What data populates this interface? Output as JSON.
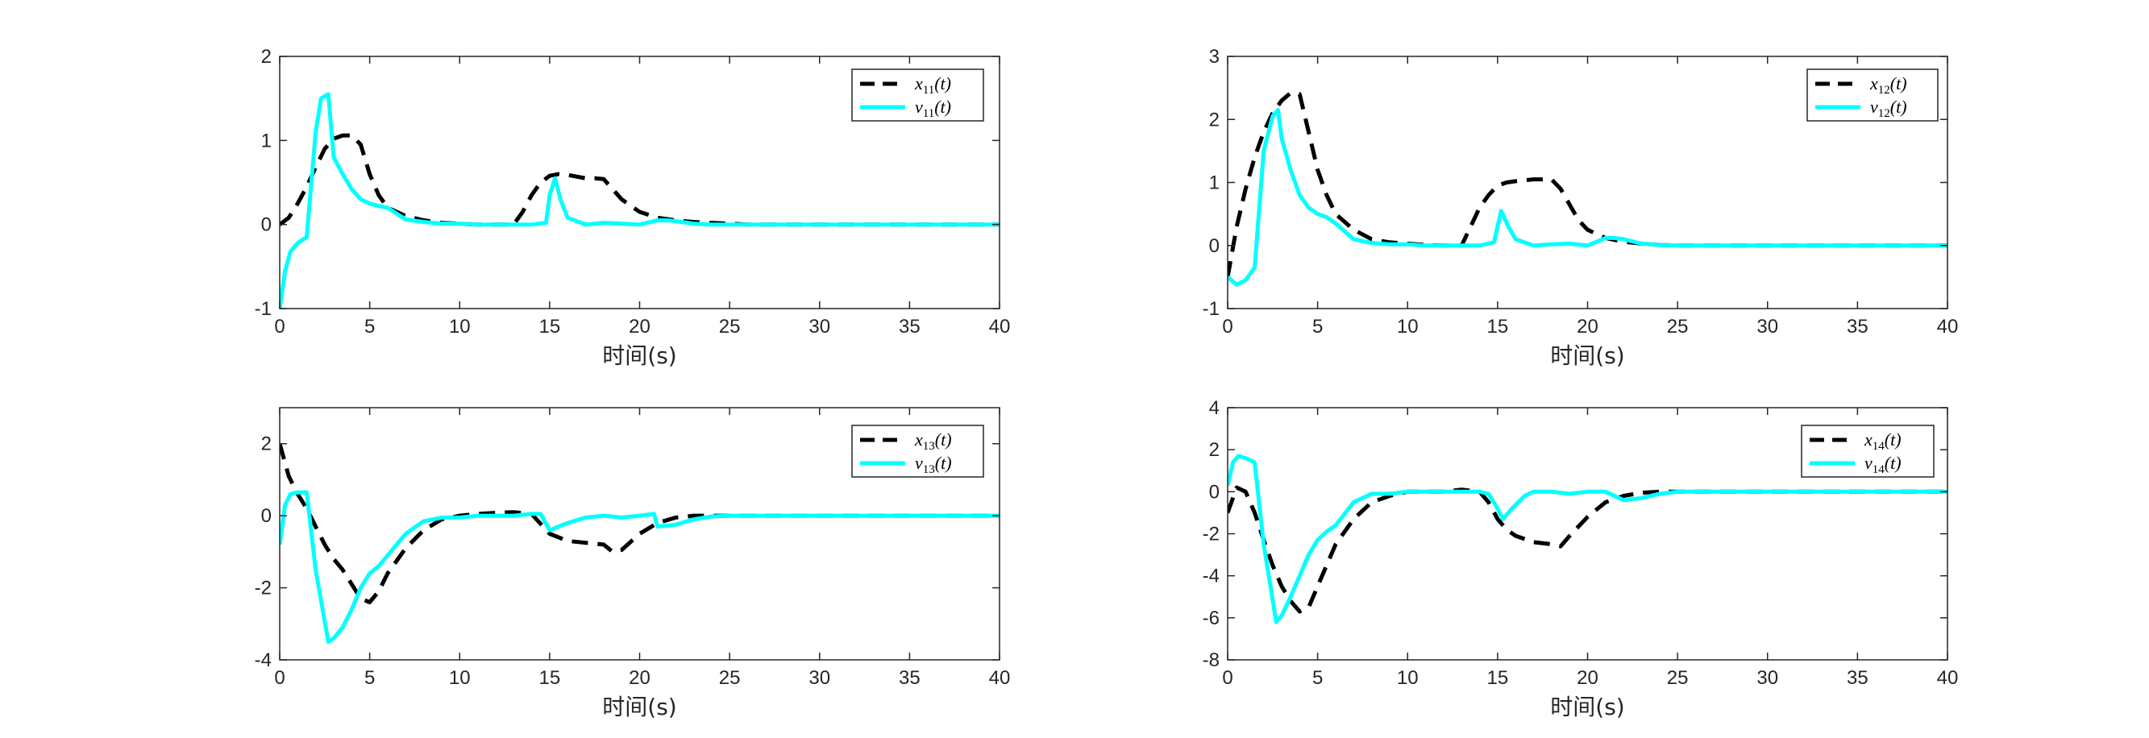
{
  "colors": {
    "x_series": "#000000",
    "v_series": "#00FFFF",
    "axes": "#262626",
    "background": "#FFFFFF"
  },
  "chart_data": [
    {
      "type": "line",
      "xlabel": "时间(s)",
      "xlim": [
        0,
        40
      ],
      "ylim": [
        -1,
        2
      ],
      "xticks": [
        0,
        5,
        10,
        15,
        20,
        25,
        30,
        35,
        40
      ],
      "yticks": [
        -1,
        0,
        1,
        2
      ],
      "legend_position": "top-right",
      "series": [
        {
          "name": "x11(t)",
          "name_main": "x",
          "name_sub": "11",
          "name_tail": "(t)",
          "style": "dashed",
          "color": "#000000",
          "x": [
            0,
            0.5,
            1,
            1.5,
            2,
            2.5,
            3,
            3.5,
            4,
            4.5,
            5,
            5.5,
            6,
            7,
            8,
            9,
            10,
            11,
            12,
            13,
            13.5,
            14,
            14.5,
            15,
            15.5,
            16,
            16.5,
            17,
            17.5,
            18,
            18.5,
            19,
            20,
            21,
            22,
            23,
            24,
            25,
            26,
            30,
            35,
            40
          ],
          "y": [
            0,
            0.08,
            0.25,
            0.45,
            0.68,
            0.9,
            1.02,
            1.06,
            1.06,
            0.95,
            0.6,
            0.35,
            0.2,
            0.1,
            0.05,
            0.02,
            0.01,
            0,
            0,
            0,
            0.15,
            0.35,
            0.5,
            0.58,
            0.6,
            0.59,
            0.57,
            0.55,
            0.55,
            0.54,
            0.42,
            0.3,
            0.15,
            0.08,
            0.05,
            0.03,
            0.02,
            0.01,
            0,
            0,
            0,
            0
          ]
        },
        {
          "name": "v11(t)",
          "name_main": "v",
          "name_sub": "11",
          "name_tail": "(t)",
          "style": "solid",
          "color": "#00FFFF",
          "x": [
            0,
            0.3,
            0.6,
            1,
            1.5,
            2,
            2.3,
            2.7,
            3,
            3.5,
            4,
            4.5,
            5,
            5.5,
            6,
            7,
            8,
            9,
            10,
            11,
            12,
            13,
            14,
            14.8,
            15,
            15.3,
            15.6,
            16,
            17,
            18,
            19,
            20,
            21,
            21.5,
            22,
            23,
            24,
            25,
            30,
            35,
            40
          ],
          "y": [
            -1,
            -0.55,
            -0.32,
            -0.22,
            -0.15,
            1.1,
            1.5,
            1.55,
            0.8,
            0.6,
            0.42,
            0.3,
            0.25,
            0.22,
            0.2,
            0.06,
            0.03,
            0.01,
            0.01,
            0,
            0,
            0,
            0,
            0.02,
            0.35,
            0.55,
            0.3,
            0.08,
            0,
            0.02,
            0.01,
            0,
            0.05,
            0.05,
            0.04,
            0.01,
            0,
            0,
            0,
            0,
            0
          ]
        }
      ]
    },
    {
      "type": "line",
      "xlabel": "时间(s)",
      "xlim": [
        0,
        40
      ],
      "ylim": [
        -1,
        3
      ],
      "xticks": [
        0,
        5,
        10,
        15,
        20,
        25,
        30,
        35,
        40
      ],
      "yticks": [
        -1,
        0,
        1,
        2,
        3
      ],
      "legend_position": "top-right",
      "series": [
        {
          "name": "x12(t)",
          "name_main": "x",
          "name_sub": "12",
          "name_tail": "(t)",
          "style": "dashed",
          "color": "#000000",
          "x": [
            0,
            0.5,
            1,
            1.5,
            2,
            2.5,
            3,
            3.5,
            4,
            4.5,
            5,
            5.5,
            6,
            7,
            8,
            9,
            10,
            11,
            12,
            13,
            13.5,
            14,
            14.5,
            15,
            15.5,
            16,
            17,
            18,
            18.5,
            19,
            19.5,
            20,
            21,
            22,
            23,
            24,
            25,
            30,
            35,
            40
          ],
          "y": [
            -0.5,
            0.3,
            0.9,
            1.4,
            1.8,
            2.1,
            2.3,
            2.42,
            2.4,
            1.8,
            1.2,
            0.8,
            0.5,
            0.25,
            0.1,
            0.05,
            0.03,
            0.01,
            0,
            0,
            0.3,
            0.6,
            0.8,
            0.95,
            1.0,
            1.02,
            1.05,
            1.05,
            0.9,
            0.65,
            0.4,
            0.25,
            0.12,
            0.06,
            0.03,
            0.01,
            0,
            0,
            0,
            0
          ]
        },
        {
          "name": "v12(t)",
          "name_main": "v",
          "name_sub": "12",
          "name_tail": "(t)",
          "style": "solid",
          "color": "#00FFFF",
          "x": [
            0,
            0.5,
            1,
            1.5,
            2,
            2.5,
            2.8,
            3,
            3.5,
            4,
            4.5,
            5,
            5.5,
            6,
            7,
            8,
            9,
            10,
            11,
            12,
            13,
            14,
            14.8,
            15.2,
            15.6,
            16,
            17,
            18,
            19,
            20,
            21,
            21.5,
            22,
            23,
            24,
            25,
            30,
            35,
            40
          ],
          "y": [
            -0.5,
            -0.62,
            -0.55,
            -0.35,
            1.5,
            2.05,
            2.15,
            1.7,
            1.2,
            0.8,
            0.6,
            0.5,
            0.45,
            0.35,
            0.1,
            0.04,
            0.02,
            0.02,
            0,
            0,
            0,
            0,
            0.05,
            0.55,
            0.3,
            0.1,
            0,
            0.02,
            0.03,
            0,
            0.12,
            0.12,
            0.1,
            0.03,
            0.01,
            0,
            0,
            0,
            0
          ]
        }
      ]
    },
    {
      "type": "line",
      "xlabel": "时间(s)",
      "xlim": [
        0,
        40
      ],
      "ylim": [
        -4,
        3
      ],
      "xticks": [
        0,
        5,
        10,
        15,
        20,
        25,
        30,
        35,
        40
      ],
      "yticks": [
        -4,
        -2,
        0,
        2
      ],
      "legend_position": "top-right",
      "series": [
        {
          "name": "x13(t)",
          "name_main": "x",
          "name_sub": "13",
          "name_tail": "(t)",
          "style": "dashed",
          "color": "#000000",
          "x": [
            0,
            0.5,
            1,
            1.5,
            2,
            2.5,
            3,
            3.5,
            4,
            4.5,
            5,
            5.5,
            6,
            7,
            8,
            9,
            10,
            11,
            12,
            13,
            14,
            15,
            16,
            17,
            18,
            18.5,
            19,
            20,
            21,
            22,
            23,
            24,
            25,
            30,
            35,
            40
          ],
          "y": [
            2,
            1.1,
            0.6,
            0.2,
            -0.3,
            -0.8,
            -1.2,
            -1.5,
            -1.9,
            -2.3,
            -2.4,
            -2.1,
            -1.6,
            -0.9,
            -0.4,
            -0.1,
            0,
            0.05,
            0.08,
            0.1,
            0.05,
            -0.5,
            -0.7,
            -0.75,
            -0.8,
            -1.0,
            -0.95,
            -0.5,
            -0.2,
            -0.05,
            0,
            0,
            0,
            0,
            0,
            0
          ]
        },
        {
          "name": "v13(t)",
          "name_main": "v",
          "name_sub": "13",
          "name_tail": "(t)",
          "style": "solid",
          "color": "#00FFFF",
          "x": [
            0,
            0.3,
            0.6,
            1,
            1.5,
            2,
            2.7,
            3,
            3.5,
            4,
            4.5,
            5,
            5.5,
            6,
            7,
            8,
            9,
            10,
            11,
            12,
            13,
            14,
            14.5,
            15,
            15.5,
            16,
            17,
            18,
            19,
            20,
            20.8,
            21,
            22,
            23,
            24,
            25,
            30,
            35,
            40
          ],
          "y": [
            -0.8,
            0.3,
            0.6,
            0.65,
            0.65,
            -1.5,
            -3.5,
            -3.4,
            -3.1,
            -2.6,
            -2.0,
            -1.6,
            -1.4,
            -1.1,
            -0.5,
            -0.15,
            -0.05,
            -0.05,
            0,
            0,
            0,
            0.05,
            0.05,
            -0.4,
            -0.3,
            -0.2,
            -0.05,
            0,
            -0.05,
            0,
            0.05,
            -0.3,
            -0.25,
            -0.1,
            -0.02,
            0,
            0,
            0,
            0
          ]
        }
      ]
    },
    {
      "type": "line",
      "xlabel": "时间(s)",
      "xlim": [
        0,
        40
      ],
      "ylim": [
        -8,
        4
      ],
      "xticks": [
        0,
        5,
        10,
        15,
        20,
        25,
        30,
        35,
        40
      ],
      "yticks": [
        -8,
        -6,
        -4,
        -2,
        0,
        2,
        4
      ],
      "legend_position": "top-right",
      "series": [
        {
          "name": "x14(t)",
          "name_main": "x",
          "name_sub": "14",
          "name_tail": "(t)",
          "style": "dashed",
          "color": "#000000",
          "x": [
            0,
            0.5,
            1,
            1.5,
            2,
            2.5,
            3,
            3.5,
            4,
            4.5,
            5,
            5.5,
            6,
            7,
            8,
            9,
            10,
            11,
            12,
            13,
            14,
            14.5,
            15,
            15.5,
            16,
            17,
            18,
            18.5,
            19,
            20,
            21,
            22,
            23,
            24,
            25,
            30,
            35,
            40
          ],
          "y": [
            -1,
            0.2,
            0,
            -1,
            -2.3,
            -3.5,
            -4.5,
            -5.2,
            -5.7,
            -5.5,
            -4.5,
            -3.5,
            -2.5,
            -1.3,
            -0.5,
            -0.2,
            0,
            0,
            0,
            0.1,
            0,
            -0.5,
            -1.3,
            -1.8,
            -2.1,
            -2.4,
            -2.5,
            -2.6,
            -2.1,
            -1.2,
            -0.5,
            -0.2,
            -0.05,
            0,
            0,
            0,
            0,
            0
          ]
        },
        {
          "name": "v14(t)",
          "name_main": "v",
          "name_sub": "14",
          "name_tail": "(t)",
          "style": "solid",
          "color": "#00FFFF",
          "x": [
            0,
            0.3,
            0.6,
            1,
            1.5,
            2,
            2.7,
            3,
            3.5,
            4,
            4.5,
            5,
            5.5,
            6,
            7,
            8,
            9,
            10,
            11,
            12,
            13,
            14,
            14.5,
            15,
            15.3,
            15.8,
            16.5,
            17,
            18,
            19,
            20,
            21,
            22,
            23,
            24,
            25,
            30,
            35,
            40
          ],
          "y": [
            0.3,
            1.4,
            1.7,
            1.6,
            1.4,
            -2.5,
            -6.2,
            -5.9,
            -5.0,
            -4.0,
            -3.0,
            -2.3,
            -1.9,
            -1.6,
            -0.5,
            -0.1,
            -0.1,
            0,
            0,
            0,
            0,
            0,
            -0.1,
            -0.8,
            -1.3,
            -0.8,
            -0.2,
            0,
            0,
            -0.1,
            0,
            0,
            -0.4,
            -0.3,
            -0.1,
            0,
            0,
            0,
            0
          ]
        }
      ]
    }
  ]
}
